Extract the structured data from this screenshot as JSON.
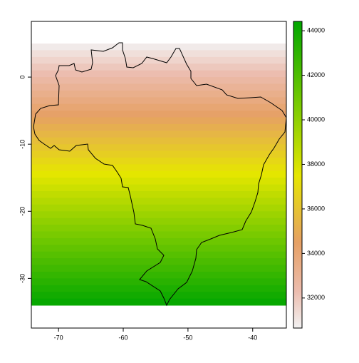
{
  "chart_data": {
    "type": "raster",
    "xlim": [
      -74.2,
      -34.8
    ],
    "ylim": [
      -37.4,
      8.3
    ],
    "xticks": [
      -70,
      -60,
      -50,
      -40
    ],
    "yticks": [
      0,
      -10,
      -20,
      -30
    ],
    "y": [
      4.5,
      3.5,
      2.5,
      1.5,
      0.5,
      -0.5,
      -1.5,
      -2.5,
      -3.5,
      -4.5,
      -5.5,
      -6.5,
      -7.5,
      -8.5,
      -9.5,
      -10.5,
      -11.5,
      -12.5,
      -13.5,
      -14.5,
      -15.5,
      -16.5,
      -17.5,
      -18.5,
      -19.5,
      -20.5,
      -21.5,
      -22.5,
      -23.5,
      -24.5,
      -25.5,
      -26.5,
      -27.5,
      -28.5,
      -29.5,
      -30.5,
      -31.5,
      -32.5,
      -33.5
    ],
    "values": [
      30880,
      31230,
      31580,
      31930,
      32280,
      32630,
      32980,
      33330,
      33680,
      34040,
      34390,
      34740,
      35090,
      35440,
      35790,
      36140,
      36490,
      36840,
      37190,
      37550,
      37900,
      38250,
      38600,
      38950,
      39300,
      39650,
      40000,
      40350,
      40700,
      41060,
      41410,
      41760,
      42110,
      42460,
      42810,
      43160,
      43510,
      43860,
      44210
    ],
    "zlim": [
      30650,
      44420
    ],
    "zticks": [
      32000,
      34000,
      36000,
      38000,
      40000,
      42000,
      44000
    ],
    "colorscale": [
      [
        30650,
        "#f2f2f2"
      ],
      [
        32300,
        "#ecbcae"
      ],
      [
        34500,
        "#e6a064"
      ],
      [
        37500,
        "#e6e600"
      ],
      [
        40500,
        "#7fcc00"
      ],
      [
        44420,
        "#00a600"
      ]
    ]
  }
}
